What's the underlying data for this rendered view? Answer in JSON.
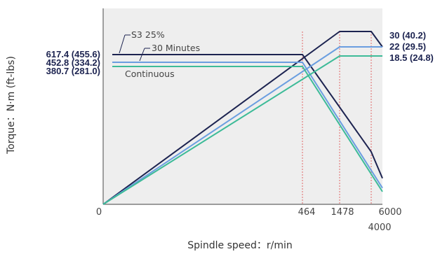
{
  "chart_data": {
    "type": "line",
    "xlabel": "Spindle speed：r/min",
    "ylabel": "Torque：N·m (ft-lbs)",
    "x_ticks": [
      {
        "value": 0,
        "label": "0"
      },
      {
        "value": 464,
        "label": "464"
      },
      {
        "value": 1478,
        "label": "1478"
      },
      {
        "value": 4000,
        "label": "4000"
      },
      {
        "value": 6000,
        "label": "6000"
      }
    ],
    "x_tick_layout": [
      "0",
      "464",
      "1478",
      "6000"
    ],
    "x_tick_lower": "4000",
    "left_labels": [
      "617.4 (455.6)",
      "452.8 (334.2)",
      "380.7 (281.0)"
    ],
    "right_labels": [
      "30 (40.2)",
      "22 (29.5)",
      "18.5 (24.8)"
    ],
    "annotations": [
      "S3 25%",
      "30 Minutes",
      "Continuous"
    ],
    "series": [
      {
        "name": "S3 25%",
        "color": "#1c2350",
        "torque": {
          "x": [
            0,
            464,
            4000,
            6000
          ],
          "y": [
            617.4,
            617.4,
            145,
            72
          ]
        },
        "power": {
          "x": [
            0,
            1478,
            4000,
            6000
          ],
          "y": [
            0,
            30,
            30,
            22
          ]
        }
      },
      {
        "name": "30 Minutes",
        "color": "#6a9ee0",
        "torque": {
          "x": [
            0,
            464,
            6000
          ],
          "y": [
            452.8,
            452.8,
            45
          ]
        },
        "power": {
          "x": [
            0,
            1478,
            6000
          ],
          "y": [
            0,
            22,
            22
          ]
        }
      },
      {
        "name": "Continuous",
        "color": "#3dbb98",
        "torque": {
          "x": [
            0,
            464,
            6000
          ],
          "y": [
            380.7,
            380.7,
            35
          ]
        },
        "power": {
          "x": [
            0,
            1478,
            6000
          ],
          "y": [
            0,
            18.5,
            18.5
          ]
        }
      }
    ],
    "reference_lines_x": [
      464,
      1478,
      4000
    ],
    "reference_color": "#e06666",
    "background": "#eeeeee",
    "grid": false
  }
}
